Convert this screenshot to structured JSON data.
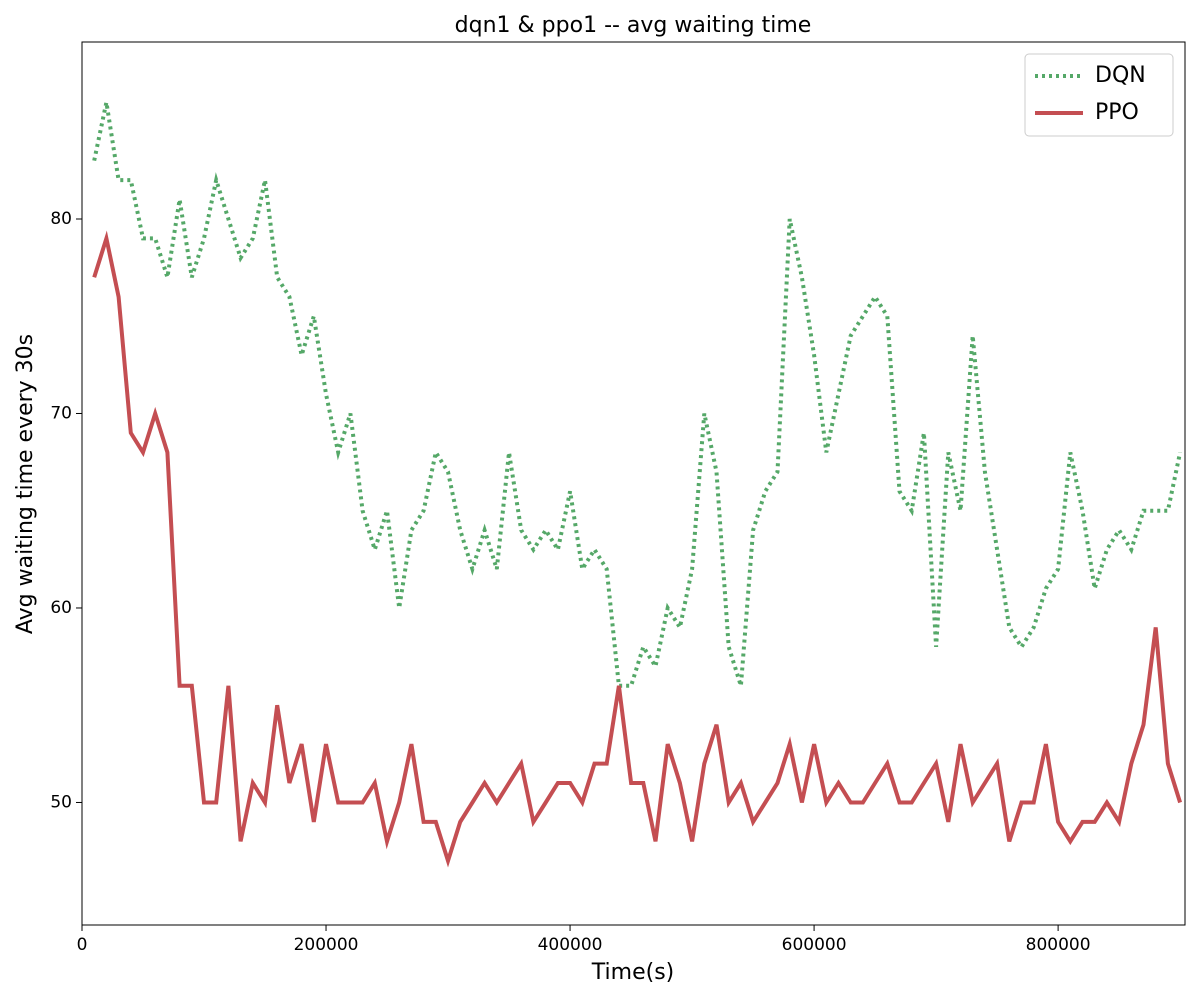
{
  "chart_data": {
    "type": "line",
    "title": "dqn1 & ppo1 -- avg waiting time",
    "x_label": "Time(s)",
    "y_label": "Avg waiting time every 30s",
    "x": [
      10000,
      20000,
      30000,
      40000,
      50000,
      60000,
      70000,
      80000,
      90000,
      100000,
      110000,
      120000,
      130000,
      140000,
      150000,
      160000,
      170000,
      180000,
      190000,
      200000,
      210000,
      220000,
      230000,
      240000,
      250000,
      260000,
      270000,
      280000,
      290000,
      300000,
      310000,
      320000,
      330000,
      340000,
      350000,
      360000,
      370000,
      380000,
      390000,
      400000,
      410000,
      420000,
      430000,
      440000,
      450000,
      460000,
      470000,
      480000,
      490000,
      500000,
      510000,
      520000,
      530000,
      540000,
      550000,
      560000,
      570000,
      580000,
      590000,
      600000,
      610000,
      620000,
      630000,
      640000,
      650000,
      660000,
      670000,
      680000,
      690000,
      700000,
      710000,
      720000,
      730000,
      740000,
      750000,
      760000,
      770000,
      780000,
      790000,
      800000,
      810000,
      820000,
      830000,
      840000,
      850000,
      860000,
      870000,
      880000,
      890000,
      900000
    ],
    "series": [
      {
        "name": "DQN",
        "color": "#55a868",
        "linestyle": "dotted",
        "values": [
          83,
          86,
          82,
          82,
          79,
          79,
          77,
          81,
          77,
          79,
          82,
          80,
          78,
          79,
          82,
          77,
          76,
          73,
          75,
          71,
          68,
          70,
          65,
          63,
          65,
          60,
          64,
          65,
          68,
          67,
          64,
          62,
          64,
          62,
          68,
          64,
          63,
          64,
          63,
          66,
          62,
          63,
          62,
          56,
          56,
          58,
          57,
          60,
          59,
          62,
          70,
          67,
          58,
          56,
          64,
          66,
          67,
          80,
          77,
          73,
          68,
          71,
          74,
          75,
          76,
          75,
          66,
          65,
          69,
          58,
          68,
          65,
          74,
          67,
          63,
          59,
          58,
          59,
          61,
          62,
          68,
          65,
          61,
          63,
          64,
          63,
          65,
          65,
          65,
          68
        ]
      },
      {
        "name": "PPO",
        "color": "#c44e52",
        "linestyle": "solid",
        "values": [
          77,
          79,
          76,
          69,
          68,
          70,
          68,
          56,
          56,
          50,
          50,
          56,
          48,
          51,
          50,
          55,
          51,
          53,
          49,
          53,
          50,
          50,
          50,
          51,
          48,
          50,
          53,
          49,
          49,
          47,
          49,
          50,
          51,
          50,
          51,
          52,
          49,
          50,
          51,
          51,
          50,
          52,
          52,
          56,
          51,
          51,
          48,
          53,
          51,
          48,
          52,
          54,
          50,
          51,
          49,
          50,
          51,
          53,
          50,
          53,
          50,
          51,
          50,
          50,
          51,
          52,
          50,
          50,
          51,
          52,
          49,
          53,
          50,
          51,
          52,
          48,
          50,
          50,
          53,
          49,
          48,
          49,
          49,
          50,
          49,
          52,
          54,
          59,
          52,
          50
        ]
      }
    ],
    "xlim": [
      0,
      904000
    ],
    "ylim": [
      43.7,
      89.1
    ],
    "xticks": [
      0,
      200000,
      400000,
      600000,
      800000
    ],
    "yticks": [
      50,
      60,
      70,
      80
    ],
    "grid": false,
    "legend": "upper right"
  }
}
